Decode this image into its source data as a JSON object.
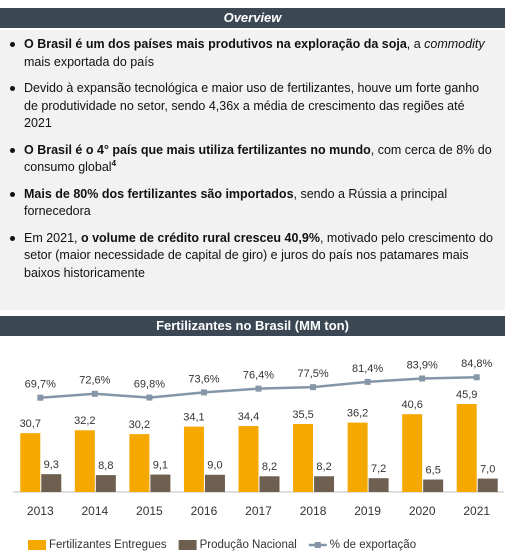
{
  "header": {
    "title": "Overview"
  },
  "bullets": [
    {
      "segments": [
        {
          "text": "O Brasil é um dos países mais produtivos na exploração da soja",
          "bold": true
        },
        {
          "text": ", a "
        },
        {
          "text": "commodity",
          "italic": true
        },
        {
          "text": " mais exportada do país"
        }
      ]
    },
    {
      "segments": [
        {
          "text": "Devido à expansão tecnológica e maior uso de fertilizantes, houve um forte ganho de produtividade no setor, sendo 4,36x a média de crescimento das regiões até 2021"
        }
      ]
    },
    {
      "segments": [
        {
          "text": "O Brasil é o 4° país que mais utiliza fertilizantes no mundo",
          "bold": true
        },
        {
          "text": ", com cerca de 8% do consumo global"
        },
        {
          "text": "4",
          "sup": true
        }
      ]
    },
    {
      "segments": [
        {
          "text": "Mais de 80% dos fertilizantes são importados",
          "bold": true
        },
        {
          "text": ", sendo a Rússia a principal fornecedora"
        }
      ]
    },
    {
      "segments": [
        {
          "text": "Em 2021, "
        },
        {
          "text": "o volume de crédito rural cresceu 40,9%",
          "bold": true
        },
        {
          "text": ", motivado pelo crescimento do setor (maior necessidade de capital de giro) e juros do país nos patamares mais baixos historicamente"
        }
      ]
    }
  ],
  "chart_data": {
    "type": "bar",
    "title": "Fertilizantes no Brasil (MM ton)",
    "categories": [
      "2013",
      "2014",
      "2015",
      "2016",
      "2017",
      "2018",
      "2019",
      "2020",
      "2021"
    ],
    "ylim": [
      0,
      60
    ],
    "y2lim": [
      0,
      85
    ],
    "series": [
      {
        "name": "Fertilizantes Entregues",
        "color": "#f5a800",
        "values": [
          30.7,
          32.2,
          30.2,
          34.1,
          34.4,
          35.5,
          36.2,
          40.6,
          45.9
        ],
        "value_labels": [
          "30,7",
          "32,2",
          "30,2",
          "34,1",
          "34,4",
          "35,5",
          "36,2",
          "40,6",
          "45,9"
        ]
      },
      {
        "name": "Produção Nacional",
        "color": "#6e5f50",
        "values": [
          9.3,
          8.8,
          9.1,
          9.0,
          8.2,
          8.2,
          7.2,
          6.5,
          7.0
        ],
        "value_labels": [
          "9,3",
          "8,8",
          "9,1",
          "9,0",
          "8,2",
          "8,2",
          "7,2",
          "6,5",
          "7,0"
        ]
      },
      {
        "name": "% de exportação",
        "type": "line",
        "axis": "y2",
        "color": "#8496a8",
        "values": [
          69.7,
          72.6,
          69.8,
          73.6,
          76.4,
          77.5,
          81.4,
          83.9,
          84.8
        ],
        "value_labels": [
          "69,7%",
          "72,6%",
          "69,8%",
          "73,6%",
          "76,4%",
          "77,5%",
          "81,4%",
          "83,9%",
          "84,8%"
        ]
      }
    ]
  }
}
